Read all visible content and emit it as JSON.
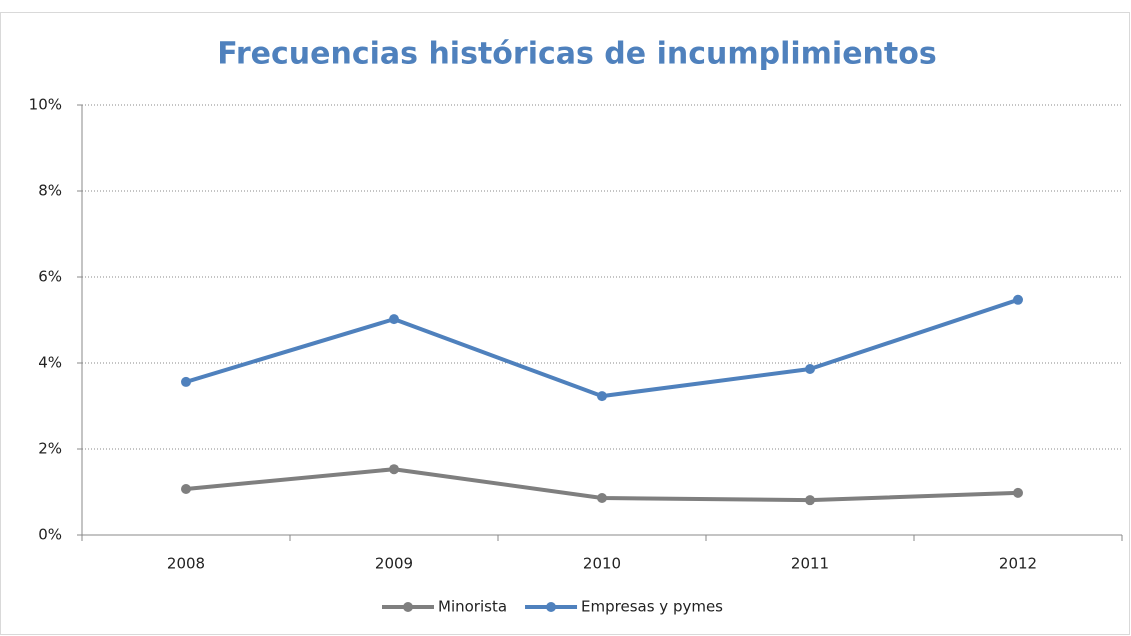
{
  "chart_data": {
    "type": "line",
    "title": "Frecuencias históricas de incumplimientos",
    "categories": [
      "2008",
      "2009",
      "2010",
      "2011",
      "2012"
    ],
    "series": [
      {
        "name": "Minorista",
        "color": "#7f7f7f",
        "values": [
          1.07,
          1.53,
          0.86,
          0.81,
          0.98
        ]
      },
      {
        "name": "Empresas y pymes",
        "color": "#4f81bd",
        "values": [
          3.56,
          5.02,
          3.23,
          3.86,
          5.47
        ]
      }
    ],
    "ylim": [
      0,
      10
    ],
    "yticks": [
      {
        "value": 0,
        "label": "0%"
      },
      {
        "value": 2,
        "label": "2%"
      },
      {
        "value": 4,
        "label": "4%"
      },
      {
        "value": 6,
        "label": "6%"
      },
      {
        "value": 8,
        "label": "8%"
      },
      {
        "value": 10,
        "label": "10%"
      }
    ],
    "grid": true,
    "legend": "bottom"
  }
}
